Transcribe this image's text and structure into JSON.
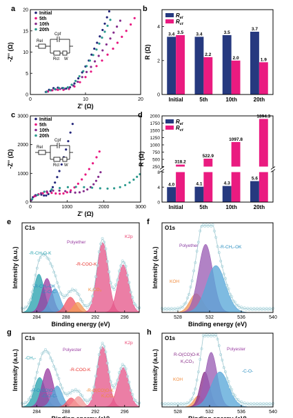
{
  "colors": {
    "initial": "#23257a",
    "c5th": "#e8157f",
    "c10th": "#852b8c",
    "c20th": "#2c9a8e",
    "rel": "#26397f",
    "rct": "#ea1b80",
    "fit_red": "#ef4a4a",
    "raw": "#b8dde4"
  },
  "chart_data": [
    {
      "panel": "a",
      "type": "scatter",
      "xlabel": "Z' (Ω)",
      "ylabel": "-Z'' (Ω)",
      "xlim": [
        0,
        20
      ],
      "ylim": [
        0,
        20
      ],
      "xticks": [
        "0",
        "10",
        "20"
      ],
      "yticks": [
        "0",
        "5",
        "10",
        "15",
        "20"
      ],
      "legend": [
        "Initial",
        "5th",
        "10th",
        "20th"
      ],
      "circuit": {
        "labels": [
          "Rel",
          "Cpf",
          "Rct",
          "W"
        ]
      },
      "series": [
        {
          "name": "Initial",
          "points": [
            [
              2.8,
              0.6
            ],
            [
              3.4,
              1.1
            ],
            [
              4.2,
              1.5
            ],
            [
              5.0,
              1.6
            ],
            [
              5.8,
              1.5
            ],
            [
              6.5,
              1.4
            ],
            [
              7.2,
              1.7
            ],
            [
              8.0,
              2.6
            ],
            [
              8.7,
              3.8
            ],
            [
              9.4,
              5.2
            ],
            [
              10.0,
              6.6
            ],
            [
              10.6,
              8.0
            ],
            [
              11.1,
              9.4
            ],
            [
              11.6,
              10.8
            ],
            [
              12.1,
              12.2
            ],
            [
              12.6,
              13.7
            ],
            [
              13.1,
              15.2
            ],
            [
              13.5,
              16.7
            ],
            [
              13.9,
              18.2
            ],
            [
              14.3,
              19.6
            ]
          ]
        },
        {
          "name": "5th",
          "points": [
            [
              3.2,
              0.7
            ],
            [
              4.0,
              1.0
            ],
            [
              5.0,
              1.1
            ],
            [
              6.0,
              1.1
            ],
            [
              7.0,
              1.3
            ],
            [
              8.0,
              1.9
            ],
            [
              9.0,
              2.9
            ],
            [
              10.0,
              4.1
            ],
            [
              11.0,
              5.4
            ],
            [
              12.0,
              6.7
            ],
            [
              13.0,
              8.0
            ],
            [
              14.0,
              9.4
            ],
            [
              15.0,
              10.8
            ],
            [
              15.8,
              12.2
            ],
            [
              16.6,
              13.6
            ],
            [
              17.4,
              15.0
            ],
            [
              18.2,
              16.5
            ],
            [
              18.9,
              18.0
            ]
          ]
        },
        {
          "name": "10th",
          "points": [
            [
              3.0,
              0.7
            ],
            [
              3.8,
              1.0
            ],
            [
              4.6,
              1.2
            ],
            [
              5.4,
              1.3
            ],
            [
              6.2,
              1.3
            ],
            [
              7.0,
              1.5
            ],
            [
              7.8,
              2.1
            ],
            [
              8.6,
              3.0
            ],
            [
              9.4,
              4.1
            ],
            [
              10.2,
              5.3
            ],
            [
              11.0,
              6.5
            ],
            [
              11.7,
              7.8
            ],
            [
              12.4,
              9.1
            ],
            [
              13.1,
              10.4
            ],
            [
              13.8,
              11.8
            ],
            [
              14.5,
              13.2
            ],
            [
              15.1,
              14.6
            ],
            [
              15.7,
              16.0
            ],
            [
              16.3,
              17.4
            ]
          ]
        },
        {
          "name": "20th",
          "points": [
            [
              2.9,
              0.6
            ],
            [
              3.6,
              1.0
            ],
            [
              4.4,
              1.3
            ],
            [
              5.2,
              1.5
            ],
            [
              6.0,
              1.5
            ],
            [
              6.8,
              1.7
            ],
            [
              7.5,
              2.3
            ],
            [
              8.2,
              3.2
            ],
            [
              8.9,
              4.3
            ],
            [
              9.6,
              5.5
            ],
            [
              10.2,
              6.7
            ],
            [
              10.8,
              8.0
            ],
            [
              11.4,
              9.3
            ],
            [
              12.0,
              10.6
            ],
            [
              12.5,
              12.0
            ],
            [
              13.0,
              13.4
            ],
            [
              13.5,
              14.8
            ],
            [
              14.0,
              16.2
            ],
            [
              14.5,
              17.6
            ]
          ]
        }
      ]
    },
    {
      "panel": "b",
      "type": "bar",
      "ylabel": "R (Ω)",
      "ylim": [
        0,
        5
      ],
      "yticks": [
        "0",
        "2",
        "4"
      ],
      "categories": [
        "Initial",
        "5th",
        "10th",
        "20th"
      ],
      "series": [
        {
          "name": "Rel",
          "values": [
            3.4,
            3.4,
            3.5,
            3.7
          ]
        },
        {
          "name": "Rct",
          "values": [
            3.5,
            2.2,
            2.0,
            1.9
          ]
        }
      ],
      "value_labels": {
        "Rel": [
          "3.4",
          "3.4",
          "3.5",
          "3.7"
        ],
        "Rct": [
          "3.5",
          "2.2",
          "2.0",
          "1.9"
        ]
      },
      "legend": [
        "Rel",
        "Rct"
      ]
    },
    {
      "panel": "c",
      "type": "scatter",
      "xlabel": "Z' (Ω)",
      "ylabel": "-Z'' (Ω)",
      "xlim": [
        0,
        3000
      ],
      "ylim": [
        0,
        3000
      ],
      "xticks": [
        "0",
        "1000",
        "2000",
        "3000"
      ],
      "yticks": [
        "0",
        "1000",
        "2000",
        "3000"
      ],
      "legend": [
        "Initial",
        "5th",
        "10th",
        "20th"
      ],
      "circuit": {
        "labels": [
          "Rel",
          "Cpf",
          "Rct",
          "W"
        ]
      },
      "series": [
        {
          "name": "Initial",
          "points": [
            [
              20,
              60
            ],
            [
              70,
              170
            ],
            [
              140,
              240
            ],
            [
              220,
              270
            ],
            [
              300,
              260
            ],
            [
              370,
              230
            ],
            [
              430,
              230
            ],
            [
              490,
              280
            ],
            [
              550,
              380
            ],
            [
              610,
              520
            ],
            [
              670,
              680
            ],
            [
              730,
              870
            ],
            [
              790,
              1080
            ],
            [
              850,
              1310
            ],
            [
              910,
              1560
            ],
            [
              970,
              1830
            ],
            [
              1030,
              2120
            ],
            [
              1090,
              2420
            ],
            [
              1150,
              2720
            ]
          ]
        },
        {
          "name": "5th",
          "points": [
            [
              30,
              80
            ],
            [
              110,
              200
            ],
            [
              220,
              270
            ],
            [
              340,
              310
            ],
            [
              460,
              330
            ],
            [
              580,
              320
            ],
            [
              690,
              300
            ],
            [
              800,
              290
            ],
            [
              900,
              300
            ],
            [
              1000,
              340
            ],
            [
              1100,
              410
            ],
            [
              1200,
              510
            ],
            [
              1300,
              640
            ],
            [
              1400,
              790
            ],
            [
              1500,
              960
            ],
            [
              1600,
              1150
            ],
            [
              1700,
              1350
            ],
            [
              1800,
              1560
            ],
            [
              1880,
              1760
            ]
          ]
        },
        {
          "name": "10th",
          "points": [
            [
              40,
              90
            ],
            [
              150,
              220
            ],
            [
              290,
              310
            ],
            [
              450,
              370
            ],
            [
              620,
              400
            ],
            [
              790,
              400
            ],
            [
              950,
              380
            ],
            [
              1090,
              350
            ],
            [
              1220,
              330
            ],
            [
              1340,
              340
            ],
            [
              1450,
              380
            ],
            [
              1550,
              440
            ],
            [
              1640,
              520
            ],
            [
              1720,
              620
            ],
            [
              1790,
              740
            ],
            [
              1850,
              880
            ],
            [
              1910,
              1040
            ]
          ]
        },
        {
          "name": "20th",
          "points": [
            [
              50,
              100
            ],
            [
              200,
              250
            ],
            [
              380,
              360
            ],
            [
              580,
              440
            ],
            [
              800,
              490
            ],
            [
              1020,
              520
            ],
            [
              1240,
              530
            ],
            [
              1460,
              520
            ],
            [
              1680,
              500
            ],
            [
              1900,
              480
            ],
            [
              2100,
              470
            ],
            [
              2280,
              480
            ],
            [
              2440,
              520
            ],
            [
              2580,
              590
            ],
            [
              2700,
              680
            ],
            [
              2810,
              780
            ],
            [
              2900,
              880
            ],
            [
              2980,
              970
            ]
          ]
        }
      ]
    },
    {
      "panel": "d",
      "type": "bar",
      "ylabel": "R (Ω)",
      "axis_break": true,
      "lower_ylim": [
        0,
        8
      ],
      "upper_ylim": [
        250,
        2000
      ],
      "yticks_lower": [
        "0",
        "4",
        "8"
      ],
      "yticks_upper": [
        "250",
        "500",
        "750",
        "1000",
        "1250",
        "1500",
        "1750",
        "2000"
      ],
      "categories": [
        "Initial",
        "5th",
        "10th",
        "20th"
      ],
      "series": [
        {
          "name": "Rel",
          "values": [
            4.0,
            4.1,
            4.3,
            5.6
          ]
        },
        {
          "name": "Rct",
          "values": [
            318.2,
            522.9,
            1097.8,
            1894.3
          ]
        }
      ],
      "value_labels": {
        "Rel": [
          "4.0",
          "4.1",
          "4.3",
          "5.6"
        ],
        "Rct": [
          "318.2",
          "522.9",
          "1097.8",
          "1894.3"
        ]
      },
      "legend": [
        "Rel",
        "Rct"
      ]
    },
    {
      "panel": "e",
      "type": "area",
      "title": "C1s",
      "xlabel": "Binding energy (eV)",
      "ylabel": "Intensity (a.u.)",
      "xlim": [
        282,
        298
      ],
      "xticks": [
        "284",
        "288",
        "292",
        "296"
      ],
      "peaks": [
        {
          "label": "-R-CH₂O-K",
          "center": 284.3,
          "height": 0.45,
          "width": 0.7,
          "color": "#2aa3b0"
        },
        {
          "label": "-R-CH₂-OK",
          "center": 285.4,
          "height": 0.4,
          "width": 0.7,
          "color": "#9b3fa3"
        },
        {
          "label": "-C-O-C-",
          "center": 286.5,
          "height": 0.28,
          "width": 0.7,
          "color": "#5aa8d8"
        },
        {
          "label": "-R-COO-K",
          "center": 288.6,
          "height": 0.18,
          "width": 0.7,
          "color": "#f05a6a"
        },
        {
          "label": "K₂CO₃",
          "center": 289.6,
          "height": 0.12,
          "width": 0.6,
          "color": "#f29a5a"
        },
        {
          "label": "K2p",
          "center": 293.0,
          "height": 0.82,
          "width": 0.75,
          "color": "#e65a8c"
        },
        {
          "label": "",
          "center": 295.8,
          "height": 0.56,
          "width": 0.75,
          "color": "#e65a8c"
        }
      ],
      "annotations": [
        "-R-CH₂O-K",
        "Polyether",
        "-R-COO-K",
        "-R-CH₂-OK",
        "-C-O-C-",
        "K₂CO₃",
        "K2p"
      ]
    },
    {
      "panel": "f",
      "type": "area",
      "title": "O1s",
      "xlabel": "Binding energy (eV)",
      "ylabel": "Intensity (a.u.)",
      "xlim": [
        526,
        540
      ],
      "xticks": [
        "528",
        "532",
        "536",
        "540"
      ],
      "peaks": [
        {
          "label": "KOH",
          "center": 530.3,
          "height": 0.22,
          "width": 0.8,
          "color": "#f29a5a"
        },
        {
          "label": "Polyether",
          "center": 531.5,
          "height": 0.8,
          "width": 0.9,
          "color": "#9b5fb5"
        },
        {
          "label": "-R-CH₂-OK",
          "center": 532.8,
          "height": 0.55,
          "width": 1.2,
          "color": "#5aa8d8"
        }
      ],
      "annotations": [
        "Polyether",
        "-R-CH₂-OK",
        "KOH"
      ]
    },
    {
      "panel": "g",
      "type": "area",
      "title": "C1s",
      "xlabel": "Binding energy (eV)",
      "ylabel": "Intensity (a.u.)",
      "xlim": [
        282,
        298
      ],
      "xticks": [
        "284",
        "288",
        "292",
        "296"
      ],
      "peaks": [
        {
          "label": "-CH₂-",
          "center": 284.4,
          "height": 0.42,
          "width": 0.75,
          "color": "#2aa3b0"
        },
        {
          "label": "Polyester",
          "center": 285.5,
          "height": 0.55,
          "width": 0.75,
          "color": "#9b3fa3"
        },
        {
          "label": "-C-O-C-",
          "center": 286.8,
          "height": 0.3,
          "width": 0.7,
          "color": "#5aa8d8"
        },
        {
          "label": "-R-COO-K",
          "center": 288.7,
          "height": 0.13,
          "width": 0.6,
          "color": "#f05a6a"
        },
        {
          "label": "-R-O(CO)O-K",
          "center": 289.7,
          "height": 0.15,
          "width": 0.6,
          "color": "#f29a9a"
        },
        {
          "label": "K2p",
          "center": 293.0,
          "height": 0.86,
          "width": 0.75,
          "color": "#e65a8c"
        },
        {
          "label": "",
          "center": 295.8,
          "height": 0.56,
          "width": 0.75,
          "color": "#e65a8c"
        }
      ],
      "annotations": [
        "-CH₂-",
        "Polyester",
        "-R-COO-K",
        "K2p",
        "-R-O(CO)O-",
        "-C-O-C-",
        "-R-O(CO)O-K",
        "K₂CO₃"
      ]
    },
    {
      "panel": "h",
      "type": "area",
      "title": "O1s",
      "xlabel": "Binding energy (eV)",
      "ylabel": "Intensity (a.u.)",
      "xlim": [
        526,
        540
      ],
      "xticks": [
        "528",
        "532",
        "536",
        "540"
      ],
      "peaks": [
        {
          "label": "KOH",
          "center": 530.6,
          "height": 0.16,
          "width": 0.6,
          "color": "#f29a5a"
        },
        {
          "label": "R-O(CO)O-K",
          "center": 531.4,
          "height": 0.5,
          "width": 0.6,
          "color": "#8a2f8a"
        },
        {
          "label": "Polyester",
          "center": 532.2,
          "height": 0.78,
          "width": 0.75,
          "color": "#9b5fb5"
        },
        {
          "label": "-C-O-",
          "center": 533.3,
          "height": 0.5,
          "width": 1.1,
          "color": "#5aa8d8"
        }
      ],
      "annotations": [
        "R-O(CO)O-K",
        "K₂CO₃",
        "Polyester",
        "KOH",
        "-C-O-"
      ]
    }
  ]
}
